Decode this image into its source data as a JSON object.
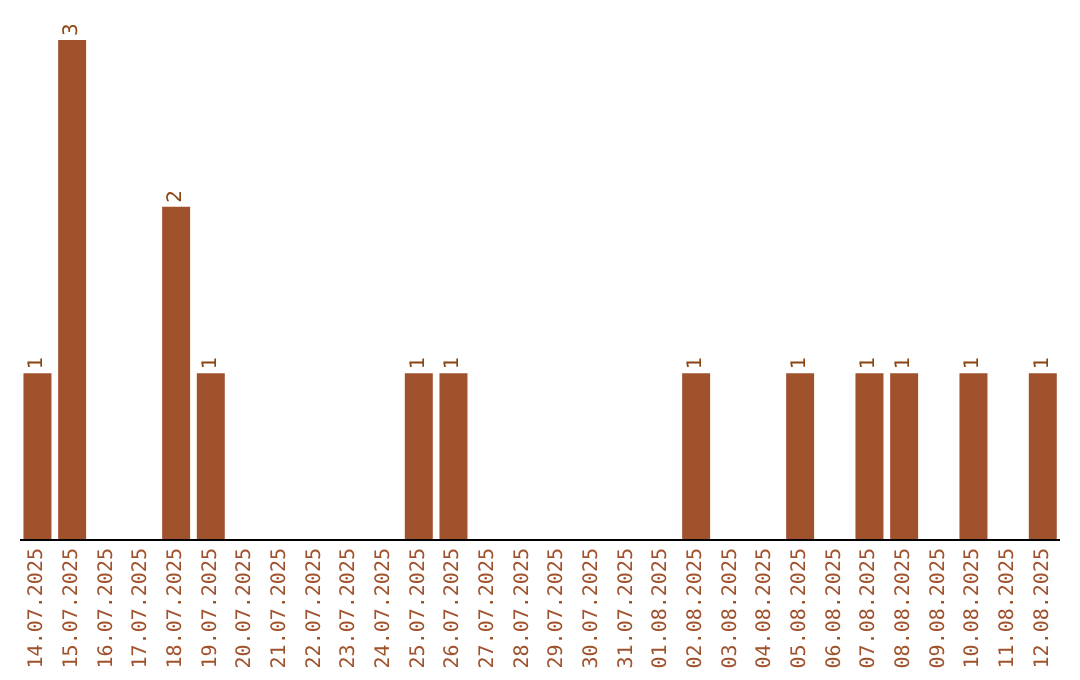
{
  "chart_data": {
    "type": "bar",
    "categories": [
      "14.07.2025",
      "15.07.2025",
      "16.07.2025",
      "17.07.2025",
      "18.07.2025",
      "19.07.2025",
      "20.07.2025",
      "21.07.2025",
      "22.07.2025",
      "23.07.2025",
      "24.07.2025",
      "25.07.2025",
      "26.07.2025",
      "27.07.2025",
      "28.07.2025",
      "29.07.2025",
      "30.07.2025",
      "31.07.2025",
      "01.08.2025",
      "02.08.2025",
      "03.08.2025",
      "04.08.2025",
      "05.08.2025",
      "06.08.2025",
      "07.08.2025",
      "08.08.2025",
      "09.08.2025",
      "10.08.2025",
      "11.08.2025",
      "12.08.2025"
    ],
    "values": [
      1,
      3,
      0,
      0,
      2,
      1,
      0,
      0,
      0,
      0,
      0,
      1,
      1,
      0,
      0,
      0,
      0,
      0,
      0,
      1,
      0,
      0,
      1,
      0,
      1,
      1,
      0,
      1,
      0,
      1
    ],
    "value_labels": [
      "1",
      "3",
      null,
      null,
      "2",
      "1",
      null,
      null,
      null,
      null,
      null,
      "1",
      "1",
      null,
      null,
      null,
      null,
      null,
      null,
      "1",
      null,
      null,
      "1",
      null,
      "1",
      "1",
      null,
      "1",
      null,
      "1"
    ],
    "color": "#a0522d",
    "tick_labels": "x",
    "grid": false,
    "legend": false
  }
}
